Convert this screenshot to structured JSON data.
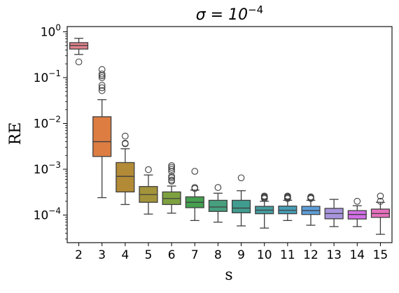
{
  "chart_data": {
    "type": "box",
    "title_prefix": "σ = 10",
    "title_exponent": "−4",
    "xlabel": "s",
    "ylabel": "RE",
    "yscale": "log",
    "ylim": [
      2.5e-05,
      1.3
    ],
    "grid": false,
    "legend": "none",
    "categories": [
      "2",
      "3",
      "4",
      "5",
      "6",
      "7",
      "8",
      "9",
      "10",
      "11",
      "12",
      "13",
      "14",
      "15"
    ],
    "yticks": [
      {
        "value": 0.0001,
        "base": "10",
        "exp": "−4"
      },
      {
        "value": 0.001,
        "base": "10",
        "exp": "−3"
      },
      {
        "value": 0.01,
        "base": "10",
        "exp": "−2"
      },
      {
        "value": 0.1,
        "base": "10",
        "exp": "−1"
      },
      {
        "value": 1,
        "base": "10",
        "exp": "0"
      }
    ],
    "boxes": [
      {
        "category": "2",
        "color": "#e1828d",
        "whislo": 0.32,
        "q1": 0.42,
        "med": 0.5,
        "q3": 0.58,
        "whishi": 0.72,
        "fliers": [
          0.22
        ]
      },
      {
        "category": "3",
        "color": "#dd7d42",
        "whislo": 0.00024,
        "q1": 0.0019,
        "med": 0.004,
        "q3": 0.014,
        "whishi": 0.033,
        "fliers": [
          0.052,
          0.06,
          0.068,
          0.1,
          0.11,
          0.12,
          0.15
        ]
      },
      {
        "category": "4",
        "color": "#b38a36",
        "whislo": 0.00017,
        "q1": 0.00032,
        "med": 0.0007,
        "q3": 0.0014,
        "whishi": 0.0028,
        "fliers": [
          0.0036,
          0.0037,
          0.0053
        ]
      },
      {
        "category": "5",
        "color": "#a3933b",
        "whislo": 0.000105,
        "q1": 0.00019,
        "med": 0.00028,
        "q3": 0.00042,
        "whishi": 0.00075,
        "fliers": [
          0.00098
        ]
      },
      {
        "category": "6",
        "color": "#7ea140",
        "whislo": 0.00011,
        "q1": 0.00017,
        "med": 0.00023,
        "q3": 0.00032,
        "whishi": 0.00043,
        "fliers": [
          0.00055,
          0.00058,
          0.00065,
          0.0007,
          0.0009,
          0.001,
          0.0011,
          0.0012
        ]
      },
      {
        "category": "7",
        "color": "#45a050",
        "whislo": 7.6e-05,
        "q1": 0.000145,
        "med": 0.00019,
        "q3": 0.00025,
        "whishi": 0.00035,
        "fliers": [
          0.00038,
          0.0004,
          0.0009
        ]
      },
      {
        "category": "8",
        "color": "#47a07d",
        "whislo": 7e-05,
        "q1": 0.00012,
        "med": 0.00015,
        "q3": 0.00021,
        "whishi": 0.0003,
        "fliers": [
          0.0004
        ]
      },
      {
        "category": "9",
        "color": "#409c8f",
        "whislo": 5.8e-05,
        "q1": 0.000112,
        "med": 0.000142,
        "q3": 0.00021,
        "whishi": 0.00034,
        "fliers": [
          0.00065
        ]
      },
      {
        "category": "10",
        "color": "#459c9f",
        "whislo": 5.2e-05,
        "q1": 0.000107,
        "med": 0.000128,
        "q3": 0.000155,
        "whishi": 0.0002,
        "fliers": [
          0.00023,
          0.00024,
          0.00025,
          0.00026
        ]
      },
      {
        "category": "11",
        "color": "#479db5",
        "whislo": 7.6e-05,
        "q1": 0.000107,
        "med": 0.000127,
        "q3": 0.000157,
        "whishi": 0.00021,
        "fliers": [
          0.00023,
          0.00024,
          0.00025,
          0.00026
        ]
      },
      {
        "category": "12",
        "color": "#5d9ed8",
        "whislo": 6e-05,
        "q1": 0.000103,
        "med": 0.000125,
        "q3": 0.000155,
        "whishi": 0.00021,
        "fliers": [
          0.00023,
          0.00024,
          0.00025
        ]
      },
      {
        "category": "13",
        "color": "#a894dd",
        "whislo": 5.6e-05,
        "q1": 8.3e-05,
        "med": 0.000108,
        "q3": 0.00014,
        "whishi": 0.00022,
        "fliers": []
      },
      {
        "category": "14",
        "color": "#d36ee6",
        "whislo": 5.6e-05,
        "q1": 8.2e-05,
        "med": 0.000103,
        "q3": 0.000125,
        "whishi": 0.00016,
        "fliers": [
          0.0002
        ]
      },
      {
        "category": "15",
        "color": "#e570bd",
        "whislo": 3.8e-05,
        "q1": 8.9e-05,
        "med": 0.000108,
        "q3": 0.000135,
        "whishi": 0.00019,
        "fliers": [
          0.0002,
          0.00026
        ]
      }
    ]
  }
}
